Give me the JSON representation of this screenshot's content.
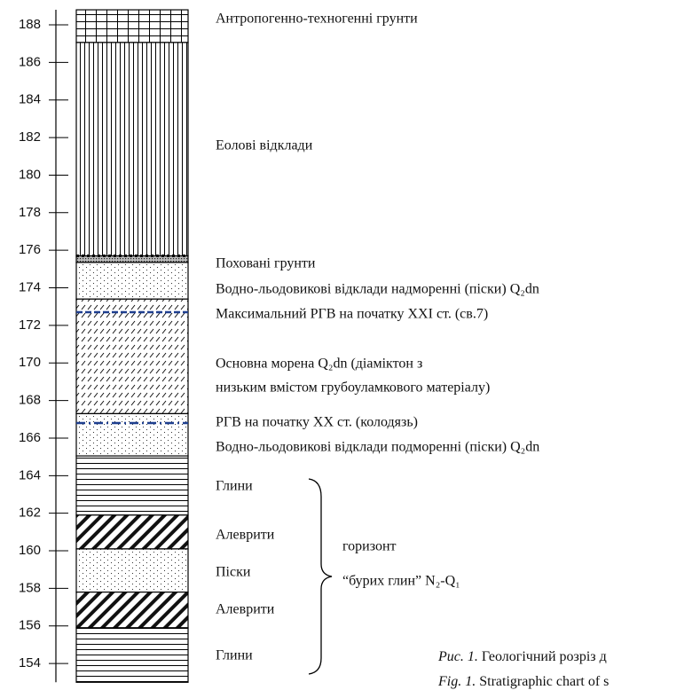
{
  "axis": {
    "range": [
      153,
      188.8
    ],
    "ticks": [
      154,
      156,
      158,
      160,
      162,
      164,
      166,
      168,
      170,
      172,
      174,
      176,
      178,
      180,
      182,
      184,
      186,
      188
    ]
  },
  "layers": [
    {
      "name": "Антропогенно-техногенні грунти",
      "top": 188.8,
      "bottom": 187.06,
      "pattern": "grid"
    },
    {
      "name": "Еолові відклади",
      "top": 187.06,
      "bottom": 175.7,
      "pattern": "vlines"
    },
    {
      "name": "Поховані грунти",
      "top": 175.7,
      "bottom": 175.35,
      "pattern": "soil"
    },
    {
      "name": "Водно-льодовикові відклади надморенні (піски) Q₂dn",
      "top": 175.35,
      "bottom": 173.4,
      "pattern": "dots"
    },
    {
      "lines": [
        "Основна морена Q₂dn (діаміктон з",
        " низьким вмістом грубоуламкового матеріалу)"
      ],
      "top": 173.4,
      "bottom": 167.3,
      "pattern": "hatch"
    },
    {
      "name": "Водно-льодовикові відклади подморенні (піски)  Q₂dn",
      "top": 167.3,
      "bottom": 165.05,
      "pattern": "dots"
    },
    {
      "name": "Глини",
      "top": 165.05,
      "bottom": 161.9,
      "pattern": "hlines"
    },
    {
      "name": "Алеврити",
      "top": 161.9,
      "bottom": 160.1,
      "pattern": "bold"
    },
    {
      "name": "Піски",
      "top": 160.1,
      "bottom": 157.8,
      "pattern": "dots"
    },
    {
      "name": "Алеврити",
      "top": 157.8,
      "bottom": 155.9,
      "pattern": "bold"
    },
    {
      "name": "Глини",
      "top": 155.9,
      "bottom": 153,
      "pattern": "hlines"
    }
  ],
  "water_levels": [
    {
      "label": "Максимальний РГВ на початку XXI ст. (св.7)",
      "level": 172.7,
      "style": "dashed"
    },
    {
      "label": "РГВ на початку XX ст. (колодязь)",
      "level": 166.8,
      "style": "dashdot"
    }
  ],
  "group": {
    "line1": "горизонт",
    "line2": "“бурих глин” N₂-Q₁"
  },
  "caption": [
    {
      "prefix": "Рис. 1.",
      "text": " Геологічний розріз д"
    },
    {
      "prefix": "Fig. 1.",
      "text": " Stratigraphic chart of s"
    }
  ]
}
